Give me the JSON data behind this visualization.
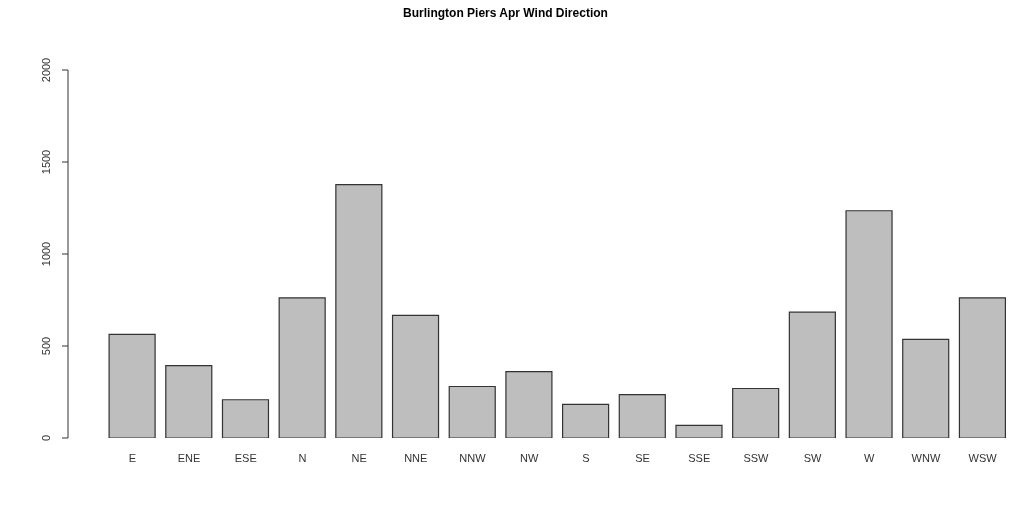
{
  "chart_data": {
    "type": "bar",
    "title": "Burlington Piers Apr Wind Direction",
    "categories": [
      "E",
      "ENE",
      "ESE",
      "N",
      "NE",
      "NNE",
      "NNW",
      "NW",
      "S",
      "SE",
      "SSE",
      "SSW",
      "SW",
      "W",
      "WNW",
      "WSW"
    ],
    "values": [
      563,
      393,
      208,
      762,
      1377,
      666,
      280,
      361,
      183,
      236,
      69,
      269,
      684,
      1235,
      536,
      762
    ],
    "color": "#bebebe",
    "ylim": [
      0,
      2000
    ],
    "yticks": [
      0,
      500,
      1000,
      1500,
      2000
    ]
  }
}
